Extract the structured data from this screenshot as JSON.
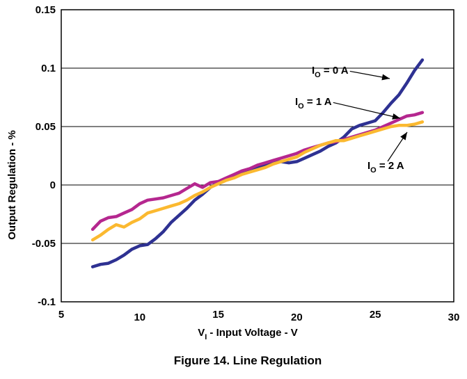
{
  "chart_data": {
    "type": "line",
    "caption": "Figure 14. Line Regulation",
    "xlabel": {
      "main": "V",
      "sub": "I",
      "rest": " - Input Voltage - V"
    },
    "ylabel": "Output Regulation - %",
    "xlim": [
      5,
      30
    ],
    "ylim": [
      -0.1,
      0.15
    ],
    "xticks": [
      "5",
      "10",
      "15",
      "20",
      "25",
      "30"
    ],
    "yticks": [
      "-0.1",
      "-0.05",
      "0",
      "0.05",
      "0.1",
      "0.15"
    ],
    "grid": "horizontal",
    "series": [
      {
        "name": {
          "main": "I",
          "sub": "O",
          "rest": " = 0 A"
        },
        "color": "#2e3192",
        "x": [
          7,
          7.5,
          8,
          8.5,
          9,
          9.5,
          10,
          10.5,
          11,
          11.5,
          12,
          12.5,
          13,
          13.5,
          14,
          14.5,
          15,
          15.5,
          16,
          16.5,
          17,
          17.5,
          18,
          18.5,
          19,
          19.5,
          20,
          20.5,
          21,
          21.5,
          22,
          22.5,
          23,
          23.5,
          24,
          24.5,
          25,
          25.5,
          26,
          26.5,
          27,
          27.5,
          28
        ],
        "y": [
          -0.07,
          -0.068,
          -0.067,
          -0.064,
          -0.06,
          -0.055,
          -0.052,
          -0.051,
          -0.046,
          -0.04,
          -0.032,
          -0.026,
          -0.02,
          -0.013,
          -0.008,
          -0.002,
          0.002,
          0.005,
          0.008,
          0.011,
          0.013,
          0.015,
          0.017,
          0.019,
          0.02,
          0.019,
          0.02,
          0.023,
          0.026,
          0.029,
          0.033,
          0.036,
          0.041,
          0.048,
          0.051,
          0.053,
          0.055,
          0.062,
          0.07,
          0.077,
          0.087,
          0.098,
          0.107
        ]
      },
      {
        "name": {
          "main": "I",
          "sub": "O",
          "rest": " = 1 A"
        },
        "color": "#b5278f",
        "x": [
          7,
          7.5,
          8,
          8.5,
          9,
          9.5,
          10,
          10.5,
          11,
          11.5,
          12,
          12.5,
          13,
          13.5,
          14,
          14.5,
          15,
          15.5,
          16,
          16.5,
          17,
          17.5,
          18,
          18.5,
          19,
          19.5,
          20,
          20.5,
          21,
          21.5,
          22,
          22.5,
          23,
          23.5,
          24,
          24.5,
          25,
          25.5,
          26,
          26.5,
          27,
          27.5,
          28
        ],
        "y": [
          -0.038,
          -0.031,
          -0.028,
          -0.027,
          -0.024,
          -0.021,
          -0.016,
          -0.013,
          -0.012,
          -0.011,
          -0.009,
          -0.007,
          -0.003,
          0.001,
          -0.002,
          0.002,
          0.003,
          0.006,
          0.009,
          0.012,
          0.014,
          0.017,
          0.019,
          0.021,
          0.023,
          0.025,
          0.027,
          0.03,
          0.032,
          0.034,
          0.036,
          0.037,
          0.039,
          0.041,
          0.043,
          0.045,
          0.047,
          0.05,
          0.053,
          0.056,
          0.059,
          0.06,
          0.062
        ]
      },
      {
        "name": {
          "main": "I",
          "sub": "O",
          "rest": " = 2 A"
        },
        "color": "#fbb930",
        "x": [
          7,
          7.5,
          8,
          8.5,
          9,
          9.5,
          10,
          10.5,
          11,
          11.5,
          12,
          12.5,
          13,
          13.5,
          14,
          14.5,
          15,
          15.5,
          16,
          16.5,
          17,
          17.5,
          18,
          18.5,
          19,
          19.5,
          20,
          20.5,
          21,
          21.5,
          22,
          22.5,
          23,
          23.5,
          24,
          24.5,
          25,
          25.5,
          26,
          26.5,
          27,
          27.5,
          28
        ],
        "y": [
          -0.047,
          -0.043,
          -0.038,
          -0.034,
          -0.036,
          -0.032,
          -0.029,
          -0.024,
          -0.022,
          -0.02,
          -0.018,
          -0.016,
          -0.013,
          -0.009,
          -0.006,
          -0.002,
          0.001,
          0.004,
          0.006,
          0.009,
          0.011,
          0.013,
          0.015,
          0.018,
          0.02,
          0.022,
          0.024,
          0.028,
          0.031,
          0.034,
          0.036,
          0.038,
          0.038,
          0.04,
          0.042,
          0.044,
          0.046,
          0.048,
          0.05,
          0.051,
          0.051,
          0.052,
          0.054
        ]
      }
    ]
  }
}
